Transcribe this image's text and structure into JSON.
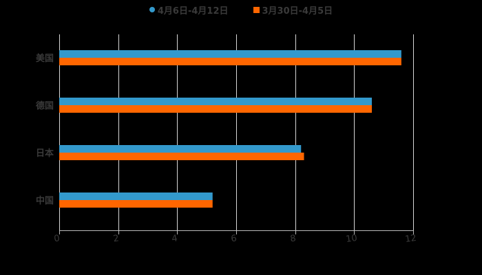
{
  "chart_data": {
    "type": "bar",
    "orientation": "horizontal",
    "title": "",
    "xlabel": "",
    "ylabel": "",
    "categories": [
      "美国",
      "德国",
      "日本",
      "中国"
    ],
    "series": [
      {
        "name": "4月6日-4月12日",
        "color": "#3399cc",
        "marker": "circle",
        "values": [
          11.6,
          10.6,
          8.2,
          5.2
        ]
      },
      {
        "name": "3月30日-4月5日",
        "color": "#ff6600",
        "marker": "square",
        "values": [
          11.6,
          10.6,
          8.3,
          5.2
        ]
      }
    ],
    "xlim": [
      0,
      12
    ],
    "xticks": [
      0,
      2,
      4,
      6,
      8,
      10,
      12
    ],
    "grid": true,
    "legend_position": "top"
  },
  "legend": {
    "items": [
      {
        "label": "4月6日-4月12日",
        "color": "#3399cc"
      },
      {
        "label": "3月30日-4月5日",
        "color": "#ff6600"
      }
    ]
  }
}
